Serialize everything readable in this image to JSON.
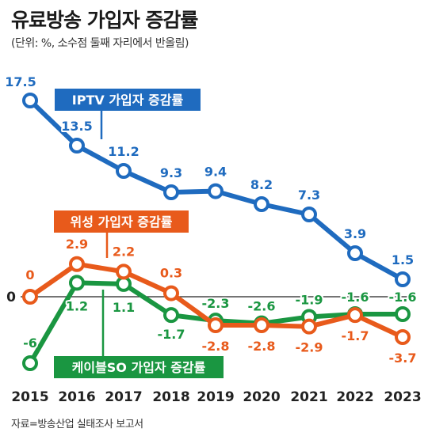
{
  "header": {
    "title": "유료방송 가입자 증감률",
    "subtitle": "(단위: %, 소수점 둘째 자리에서 반올림)"
  },
  "footer": {
    "source": "자료=방송산업 실태조사 보고서"
  },
  "colors": {
    "iptv": "#1f6bbf",
    "satellite": "#e85a1b",
    "cable": "#1a9641",
    "zero_line": "#222222"
  },
  "chart_data": {
    "type": "line",
    "title": "유료방송 가입자 증감률",
    "x": [
      "2015",
      "2016",
      "2017",
      "2018",
      "2019",
      "2020",
      "2021",
      "2022",
      "2023"
    ],
    "zero_label": "0",
    "series": [
      {
        "name": "IPTV 가입자 증감률",
        "color": "#1f6bbf",
        "values": [
          17.5,
          13.5,
          11.2,
          9.3,
          9.4,
          8.2,
          7.3,
          3.9,
          1.5
        ],
        "labels": [
          "17.5",
          "13.5",
          "11.2",
          "9.3",
          "9.4",
          "8.2",
          "7.3",
          "3.9",
          "1.5"
        ]
      },
      {
        "name": "위성 가입자 증감률",
        "color": "#e85a1b",
        "values": [
          0,
          2.9,
          2.2,
          0.3,
          -2.8,
          -2.8,
          -2.9,
          -1.7,
          -3.7
        ],
        "labels": [
          "0",
          "2.9",
          "2.2",
          "0.3",
          "-2.8",
          "-2.8",
          "-2.9",
          "-1.7",
          "-3.7"
        ]
      },
      {
        "name": "케이블SO 가입자 증감률",
        "color": "#1a9641",
        "values": [
          -6,
          1.2,
          1.1,
          -1.7,
          -2.3,
          -2.6,
          -1.9,
          -1.6,
          -1.6
        ],
        "labels": [
          "-6",
          "1.2",
          "1.1",
          "-1.7",
          "-2.3",
          "-2.6",
          "-1.9",
          "-1.6",
          "-1.6"
        ]
      }
    ]
  }
}
